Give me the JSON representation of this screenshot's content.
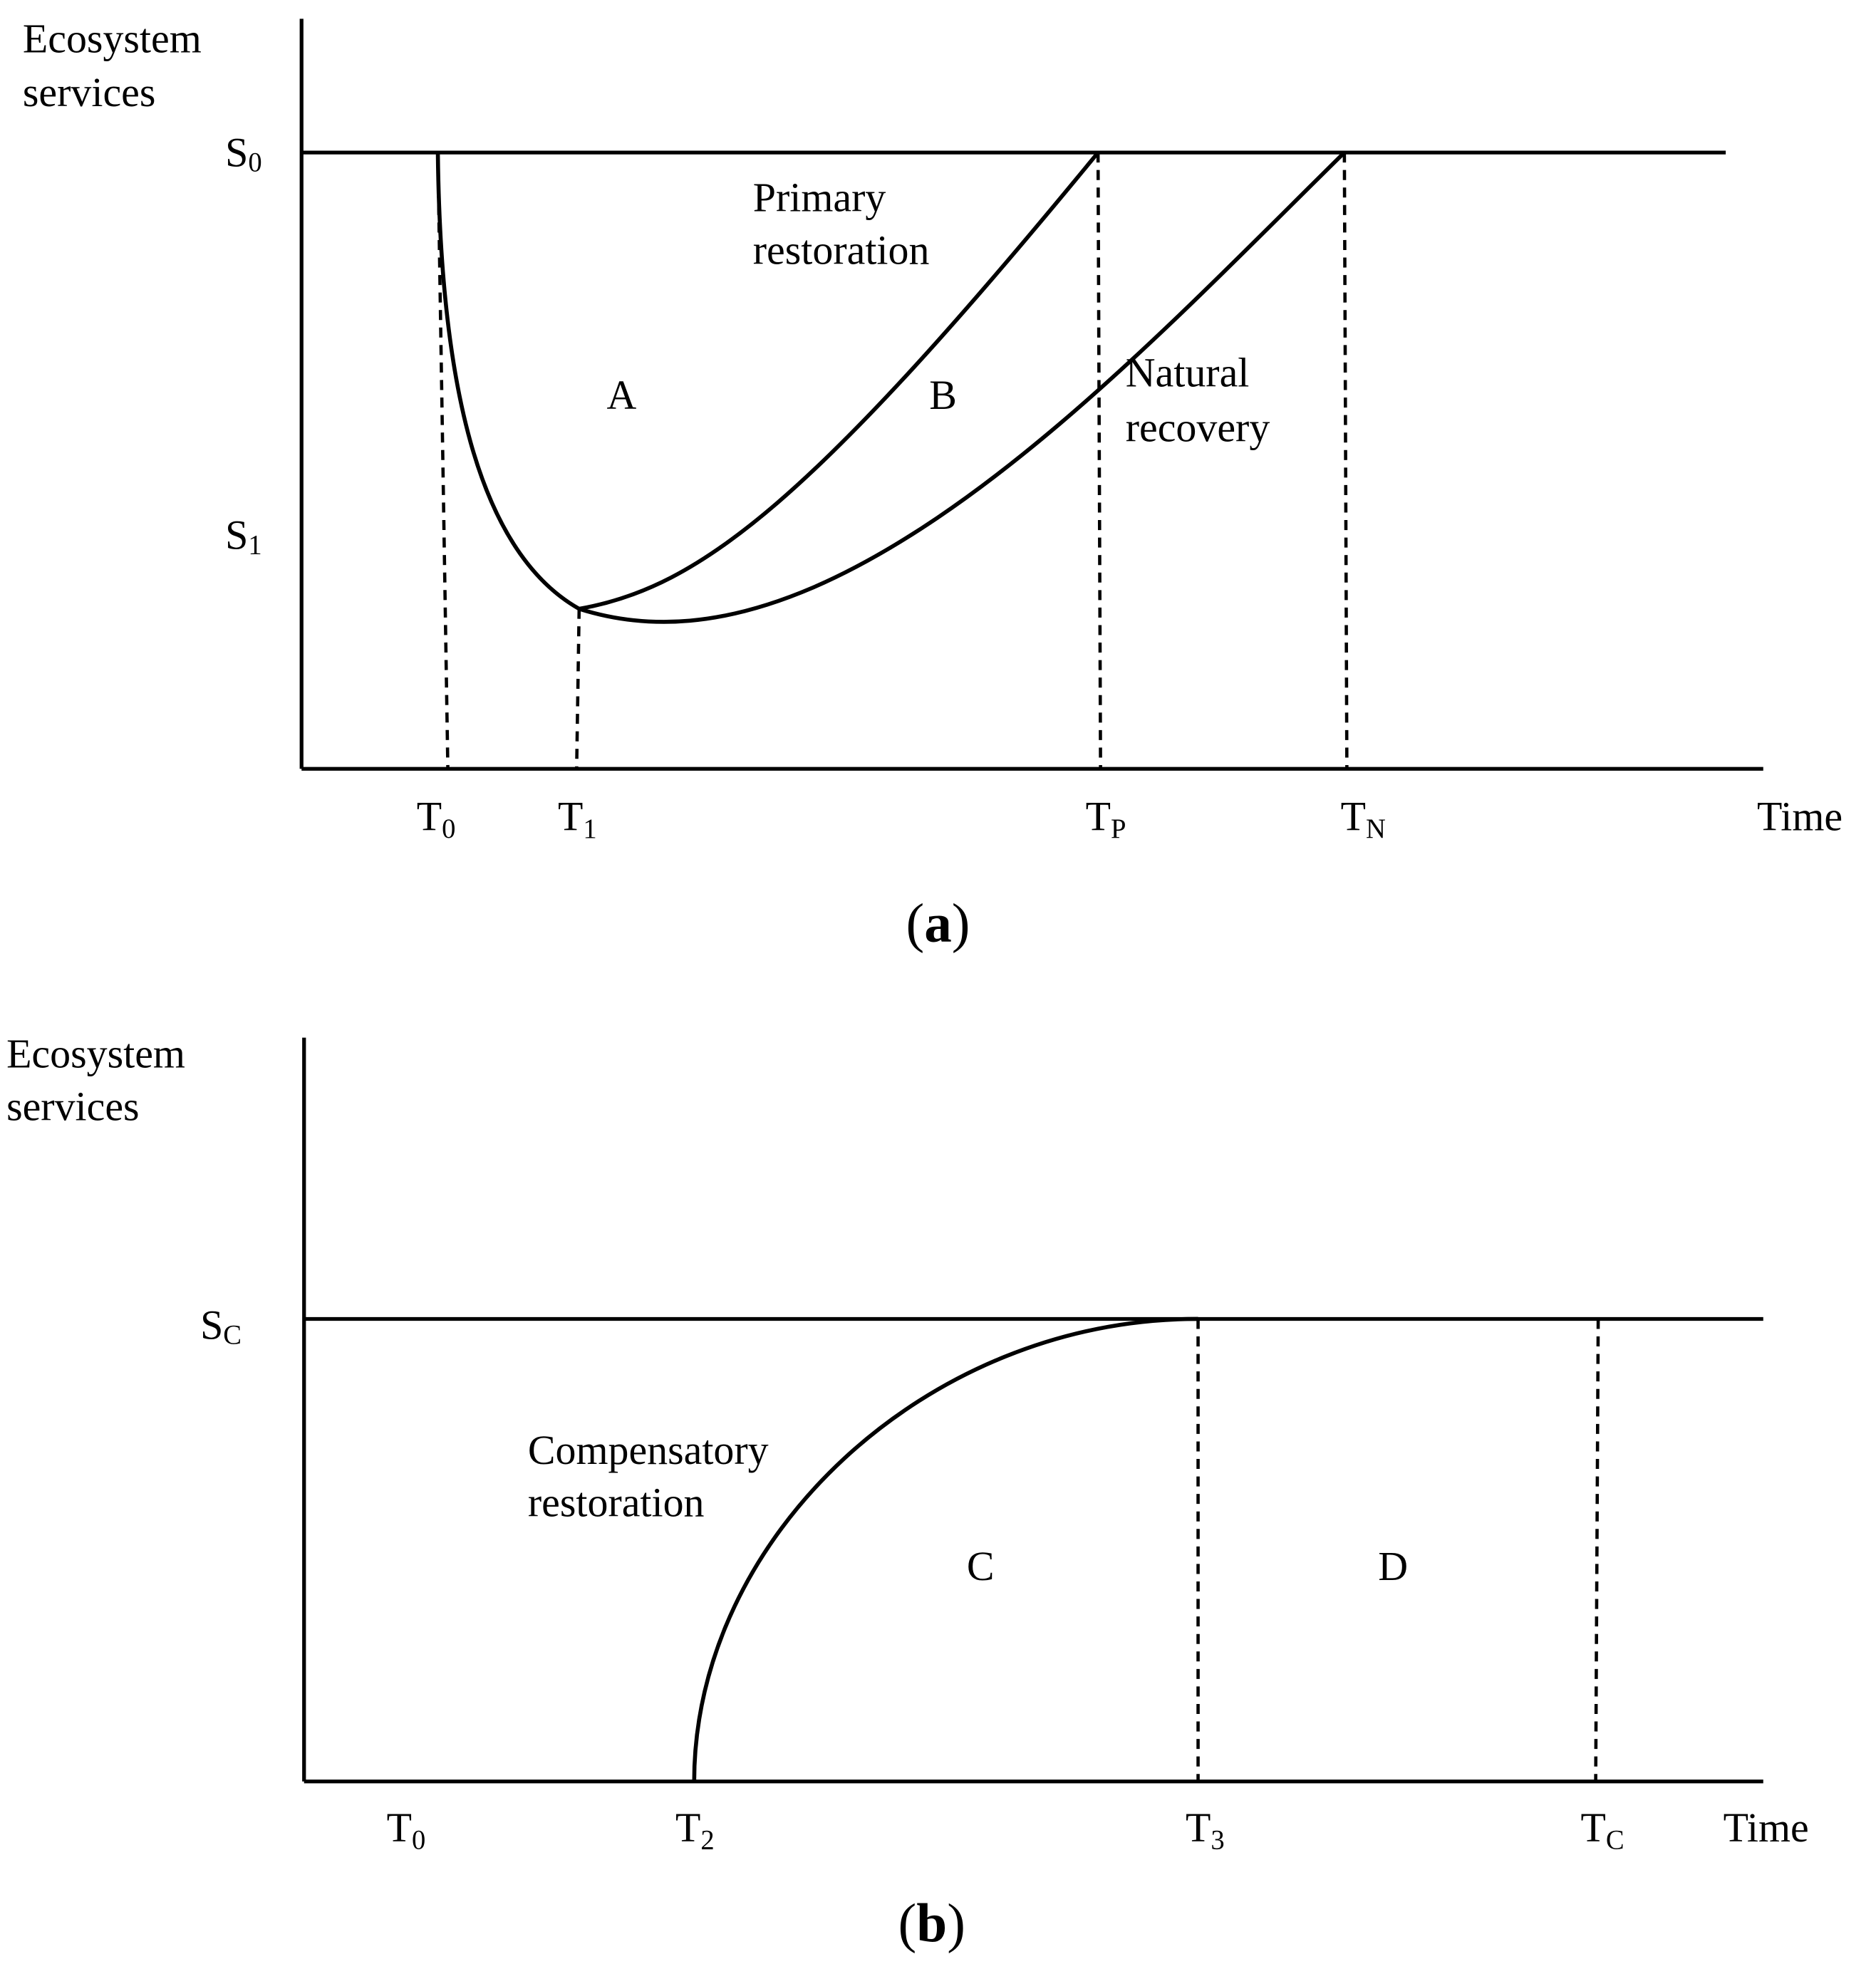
{
  "panel_a": {
    "y_label": [
      "Ecosystem",
      "services"
    ],
    "x_label": "Time",
    "y_levels": [
      {
        "base": "S",
        "sub": "0"
      },
      {
        "base": "S",
        "sub": "1"
      }
    ],
    "x_points": [
      {
        "base": "T",
        "sub": "0"
      },
      {
        "base": "T",
        "sub": "1"
      },
      {
        "base": "T",
        "sub": "P"
      },
      {
        "base": "T",
        "sub": "N"
      }
    ],
    "curve_labels": [
      [
        "Primary",
        "restoration"
      ],
      [
        "Natural",
        "recovery"
      ]
    ],
    "areas": [
      "A",
      "B"
    ],
    "caption": {
      "open": "(",
      "letter": "a",
      "close": ")"
    }
  },
  "panel_b": {
    "y_label": [
      "Ecosystem",
      "services"
    ],
    "x_label": "Time",
    "y_levels": [
      {
        "base": "S",
        "sub": "C"
      }
    ],
    "x_points": [
      {
        "base": "T",
        "sub": "0"
      },
      {
        "base": "T",
        "sub": "2"
      },
      {
        "base": "T",
        "sub": "3"
      },
      {
        "base": "T",
        "sub": "C"
      }
    ],
    "curve_labels": [
      [
        "Compensatory",
        "restoration"
      ]
    ],
    "areas": [
      "C",
      "D"
    ],
    "caption": {
      "open": "(",
      "letter": "b",
      "close": ")"
    }
  }
}
